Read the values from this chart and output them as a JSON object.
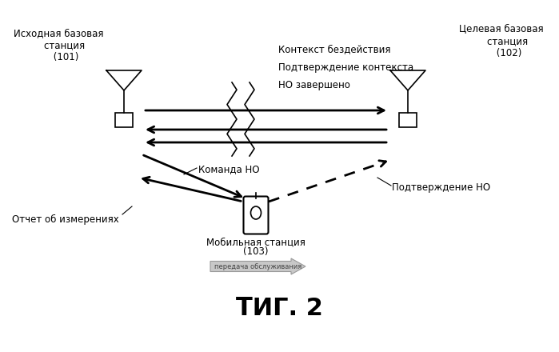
{
  "title": "ΤИГ. 2",
  "bg_color": "#ffffff",
  "left_station_label": "Исходная базовая\n    станция\n     (101)",
  "right_station_label": "Целевая базовая\n    станция\n     (102)",
  "mobile_label": "Мобильная станция\n      (103)",
  "label_context": "Контекст бездействия",
  "label_confirm_context": "Подтверждение контекста",
  "label_ho_complete": "НО завершено",
  "label_ho_command": "Команда НО",
  "label_measurement": "Отчет об измерениях",
  "label_ho_confirm": "Подтверждение НО",
  "label_handover": "передача обслуживания"
}
